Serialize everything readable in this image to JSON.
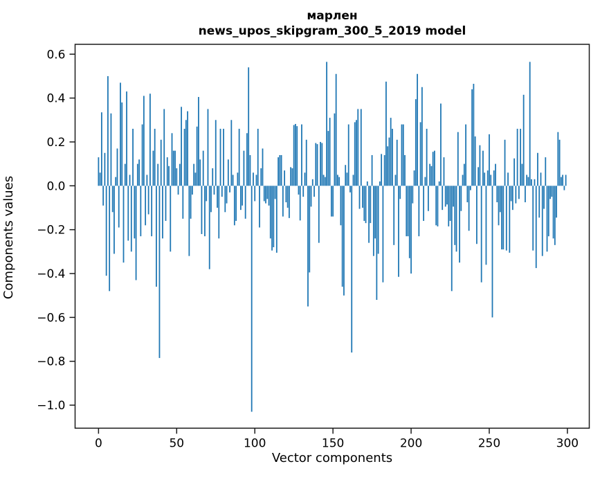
{
  "title": {
    "line1": "марлен",
    "line2": "news_upos_skipgram_300_5_2019 model"
  },
  "axes": {
    "xlabel": "Vector components",
    "ylabel": "Components values",
    "x_ticks": [
      "0",
      "50",
      "100",
      "150",
      "200",
      "250",
      "300"
    ],
    "y_ticks": [
      "0.6",
      "0.4",
      "0.2",
      "0.0",
      "−0.2",
      "−0.4",
      "−0.6",
      "−0.8",
      "−1.0"
    ]
  },
  "chart_data": {
    "type": "bar",
    "title": "марлен — news_upos_skipgram_300_5_2019 model",
    "xlabel": "Vector components",
    "ylabel": "Components values",
    "x_start": 0,
    "n_components": 300,
    "xlim": [
      -15,
      314
    ],
    "ylim": [
      -1.105,
      0.645
    ],
    "grid": false,
    "legend": "none",
    "bar_color": "#1f77b4",
    "background_color": "#ffffff",
    "spine_color": "#1a1a1a",
    "x_tick_values": [
      0,
      50,
      100,
      150,
      200,
      250,
      300
    ],
    "y_tick_values": [
      0.6,
      0.4,
      0.2,
      0.0,
      -0.2,
      -0.4,
      -0.6,
      -0.8,
      -1.0
    ],
    "values": [
      0.13,
      0.06,
      0.335,
      -0.09,
      0.15,
      -0.41,
      0.5,
      -0.48,
      0.33,
      -0.12,
      -0.31,
      0.04,
      0.17,
      -0.19,
      0.47,
      0.38,
      -0.35,
      0.1,
      0.43,
      -0.25,
      0.05,
      -0.3,
      0.26,
      -0.24,
      -0.43,
      0.1,
      0.12,
      -0.23,
      0.28,
      0.41,
      -0.18,
      0.05,
      -0.13,
      0.42,
      -0.23,
      0.16,
      0.26,
      -0.46,
      0.1,
      -0.785,
      0.21,
      -0.24,
      0.35,
      -0.16,
      0.13,
      0.09,
      -0.3,
      0.24,
      0.16,
      0.16,
      0.08,
      -0.04,
      0.1,
      0.36,
      -0.15,
      0.26,
      0.3,
      0.34,
      -0.32,
      -0.15,
      -0.04,
      0.1,
      0.06,
      0.27,
      0.405,
      0.12,
      -0.22,
      0.16,
      -0.23,
      -0.07,
      0.35,
      -0.38,
      -0.12,
      0.08,
      -0.04,
      0.3,
      -0.1,
      -0.24,
      0.26,
      -0.05,
      0.26,
      -0.12,
      -0.08,
      0.12,
      -0.03,
      0.3,
      0.05,
      -0.18,
      -0.16,
      0.06,
      0.26,
      -0.11,
      -0.09,
      0.16,
      -0.15,
      0.24,
      0.54,
      0.14,
      -1.03,
      0.06,
      -0.07,
      0.05,
      0.26,
      -0.19,
      0.08,
      0.17,
      -0.07,
      -0.08,
      -0.06,
      -0.09,
      -0.24,
      -0.295,
      -0.28,
      -0.06,
      -0.305,
      0.13,
      0.14,
      0.14,
      -0.14,
      0.07,
      -0.075,
      -0.1,
      -0.147,
      0.085,
      0.08,
      0.277,
      0.282,
      0.272,
      -0.04,
      -0.158,
      0.28,
      -0.05,
      0.06,
      0.21,
      -0.55,
      -0.395,
      -0.095,
      0.03,
      -0.05,
      0.195,
      0.19,
      -0.26,
      0.2,
      0.195,
      0.05,
      0.04,
      0.565,
      0.25,
      0.31,
      -0.14,
      -0.14,
      0.33,
      0.51,
      0.05,
      0.04,
      -0.18,
      -0.46,
      -0.5,
      0.095,
      0.06,
      0.28,
      -0.03,
      -0.76,
      0.05,
      0.29,
      0.3,
      0.35,
      -0.105,
      0.35,
      -0.1,
      -0.16,
      -0.17,
      0.02,
      -0.26,
      -0.17,
      0.14,
      -0.32,
      -0.24,
      -0.52,
      -0.31,
      0.02,
      0.145,
      -0.44,
      0.14,
      0.475,
      0.18,
      0.22,
      0.31,
      0.26,
      -0.27,
      0.05,
      0.21,
      -0.415,
      -0.06,
      0.28,
      0.28,
      0.14,
      -0.23,
      -0.23,
      -0.33,
      -0.4,
      -0.08,
      0.07,
      0.395,
      0.51,
      -0.23,
      0.29,
      0.45,
      -0.16,
      0.04,
      0.26,
      -0.115,
      0.1,
      0.09,
      0.155,
      0.16,
      -0.18,
      -0.185,
      0.02,
      0.375,
      -0.11,
      0.13,
      -0.095,
      -0.085,
      -0.185,
      -0.16,
      -0.48,
      -0.095,
      -0.27,
      -0.3,
      0.245,
      -0.35,
      -0.115,
      0.05,
      0.1,
      0.28,
      -0.075,
      -0.205,
      -0.02,
      0.44,
      0.465,
      0.225,
      -0.265,
      0.085,
      0.185,
      -0.44,
      0.16,
      0.06,
      -0.36,
      0.07,
      0.235,
      0.05,
      -0.6,
      0.07,
      0.1,
      -0.075,
      -0.18,
      -0.12,
      -0.29,
      -0.29,
      0.21,
      -0.295,
      0.06,
      -0.305,
      -0.07,
      -0.11,
      0.125,
      -0.08,
      0.26,
      -0.06,
      0.26,
      0.1,
      0.415,
      -0.075,
      0.05,
      0.04,
      0.565,
      0.03,
      -0.295,
      0.03,
      -0.375,
      0.15,
      -0.145,
      0.06,
      -0.32,
      -0.105,
      0.13,
      -0.3,
      -0.23,
      -0.06,
      -0.05,
      -0.24,
      -0.27,
      -0.145,
      0.245,
      0.21,
      0.04,
      0.05,
      -0.02,
      0.05
    ]
  }
}
